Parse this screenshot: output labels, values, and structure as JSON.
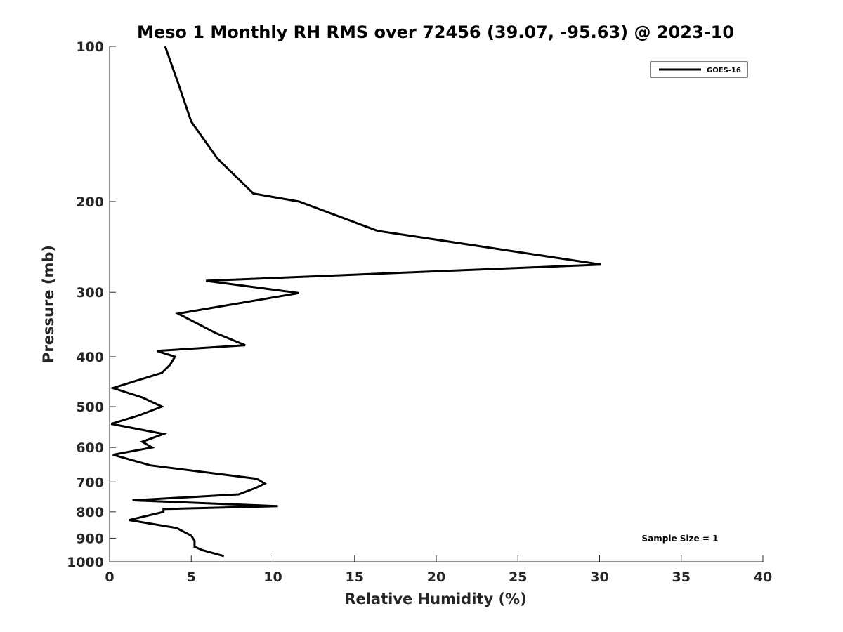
{
  "chart_data": {
    "type": "line",
    "title": "Meso 1 Monthly RH RMS over 72456 (39.07, -95.63) @ 2023-10",
    "xlabel": "Relative Humidity (%)",
    "ylabel": "Pressure (mb)",
    "xlim": [
      0,
      40
    ],
    "ylim": [
      1000,
      100
    ],
    "y_scale": "log",
    "y_reversed": true,
    "x_ticks": [
      0,
      5,
      10,
      15,
      20,
      25,
      30,
      35,
      40
    ],
    "x_tick_labels": [
      "0",
      "5",
      "10",
      "15",
      "20",
      "25",
      "30",
      "35",
      "40"
    ],
    "y_ticks": [
      100,
      200,
      300,
      400,
      500,
      600,
      700,
      800,
      900,
      1000
    ],
    "y_tick_labels": [
      "100",
      "200",
      "300",
      "400",
      "500",
      "600",
      "700",
      "800",
      "900",
      "1000"
    ],
    "grid": false,
    "legend_position": "top-right",
    "annotation": "Sample Size = 1",
    "series": [
      {
        "name": "GOES-16",
        "color": "#000000",
        "x": [
          3.4,
          4.2,
          5.0,
          6.6,
          8.8,
          11.6,
          16.4,
          30.1,
          5.9,
          11.6,
          4.2,
          6.5,
          8.3,
          2.9,
          4.0,
          3.7,
          3.2,
          0.2,
          2.0,
          3.2,
          1.8,
          0.1,
          3.3,
          2.0,
          2.6,
          0.2,
          2.5,
          9.0,
          9.5,
          8.9,
          7.9,
          1.4,
          10.3,
          3.3,
          3.3,
          1.2,
          4.1,
          5.0,
          5.2,
          5.2,
          5.7,
          7.0
        ],
        "y": [
          100,
          118,
          140,
          165,
          193,
          200,
          228,
          265,
          285,
          301,
          330,
          360,
          380,
          390,
          400,
          415,
          430,
          460,
          480,
          500,
          520,
          540,
          565,
          585,
          600,
          620,
          650,
          690,
          705,
          720,
          740,
          760,
          780,
          790,
          800,
          830,
          860,
          890,
          910,
          935,
          950,
          975
        ]
      }
    ]
  }
}
